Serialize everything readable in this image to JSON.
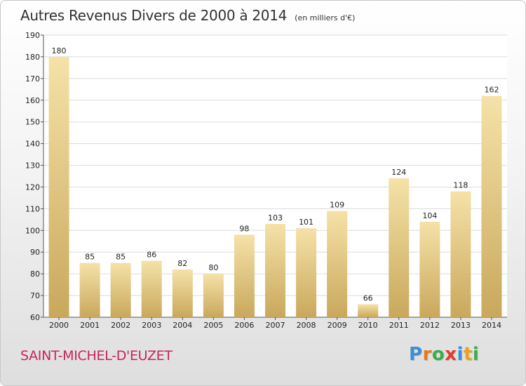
{
  "title": "Autres Revenus Divers de 2000 à 2014",
  "subtitle": "(en milliers d'€)",
  "commune": "SAINT-MICHEL-D'EUZET",
  "logo": {
    "letters": [
      {
        "char": "P",
        "color": "#3b8fd6"
      },
      {
        "char": "r",
        "color": "#e8791e"
      },
      {
        "char": "o",
        "color": "#3cae49"
      },
      {
        "char": "x",
        "color": "#e43b2a"
      },
      {
        "char": "i",
        "color": "#3b8fd6"
      },
      {
        "char": "t",
        "color": "#e8a21e"
      },
      {
        "char": "i",
        "color": "#3cae49"
      }
    ]
  },
  "colors": {
    "bar_top": "#f5e2a8",
    "bar_bottom": "#c9a85c",
    "grid": "#dcdcdc",
    "commune": "#c8245a"
  },
  "chart_data": {
    "type": "bar",
    "categories": [
      "2000",
      "2001",
      "2002",
      "2003",
      "2004",
      "2005",
      "2006",
      "2007",
      "2008",
      "2009",
      "2010",
      "2011",
      "2012",
      "2013",
      "2014"
    ],
    "values": [
      180,
      85,
      85,
      86,
      82,
      80,
      98,
      103,
      101,
      109,
      66,
      124,
      104,
      118,
      162
    ],
    "ylim": [
      60,
      190
    ],
    "yticks": [
      60,
      70,
      80,
      90,
      100,
      110,
      120,
      130,
      140,
      150,
      160,
      170,
      180,
      190
    ],
    "grid": true
  }
}
